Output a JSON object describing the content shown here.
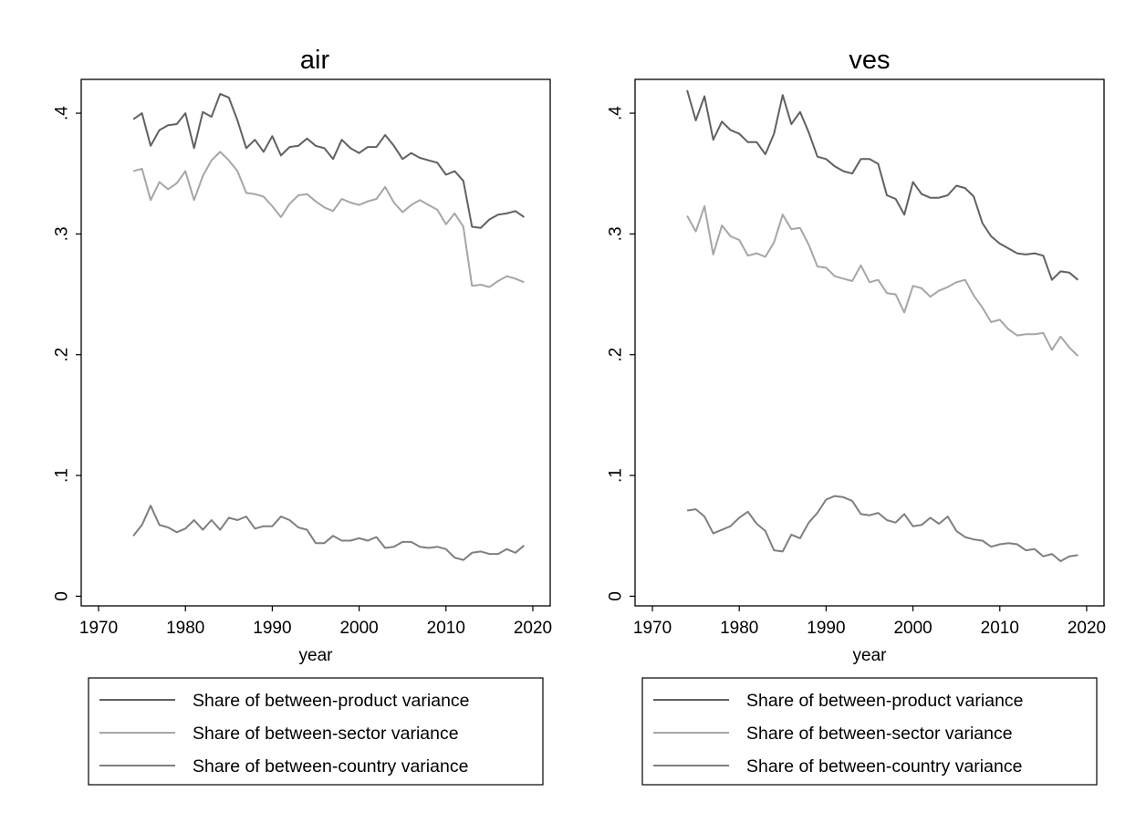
{
  "colors": {
    "between_product": "#616161",
    "between_sector": "#a6a6a6",
    "between_country": "#7f7f7f",
    "frame": "#000000"
  },
  "legend": {
    "items": [
      "Share of between-product variance",
      "Share of between-sector variance",
      "Share of between-country variance"
    ]
  },
  "chart_data": [
    {
      "type": "line",
      "title": "air",
      "xlabel": "year",
      "ylabel": "",
      "xlim": [
        1968,
        2022
      ],
      "ylim": [
        -0.008,
        0.428
      ],
      "xticks": [
        1970,
        1980,
        1990,
        2000,
        2010,
        2020
      ],
      "xtick_labels": [
        "1970",
        "1980",
        "1990",
        "2000",
        "2010",
        "2020"
      ],
      "yticks": [
        0,
        0.1,
        0.2,
        0.3,
        0.4
      ],
      "ytick_labels": [
        "0",
        ".1",
        ".2",
        ".3",
        ".4"
      ],
      "grid": false,
      "legend_position": "bottom",
      "x": [
        1974,
        1975,
        1976,
        1977,
        1978,
        1979,
        1980,
        1981,
        1982,
        1983,
        1984,
        1985,
        1986,
        1987,
        1988,
        1989,
        1990,
        1991,
        1992,
        1993,
        1994,
        1995,
        1996,
        1997,
        1998,
        1999,
        2000,
        2001,
        2002,
        2003,
        2004,
        2005,
        2006,
        2007,
        2008,
        2009,
        2010,
        2011,
        2012,
        2013,
        2014,
        2015,
        2016,
        2017,
        2018,
        2019
      ],
      "series": [
        {
          "name": "Share of between-product variance",
          "values": [
            0.395,
            0.4,
            0.373,
            0.386,
            0.39,
            0.391,
            0.4,
            0.371,
            0.401,
            0.397,
            0.416,
            0.413,
            0.394,
            0.371,
            0.378,
            0.368,
            0.381,
            0.365,
            0.372,
            0.373,
            0.379,
            0.373,
            0.371,
            0.362,
            0.378,
            0.371,
            0.367,
            0.372,
            0.372,
            0.382,
            0.373,
            0.362,
            0.367,
            0.363,
            0.361,
            0.359,
            0.349,
            0.352,
            0.344,
            0.306,
            0.305,
            0.312,
            0.316,
            0.317,
            0.319,
            0.314
          ]
        },
        {
          "name": "Share of between-sector variance",
          "values": [
            0.352,
            0.354,
            0.328,
            0.343,
            0.337,
            0.342,
            0.352,
            0.328,
            0.348,
            0.361,
            0.368,
            0.361,
            0.352,
            0.334,
            0.333,
            0.331,
            0.323,
            0.314,
            0.325,
            0.332,
            0.333,
            0.327,
            0.322,
            0.319,
            0.329,
            0.326,
            0.324,
            0.327,
            0.329,
            0.339,
            0.326,
            0.318,
            0.324,
            0.328,
            0.324,
            0.32,
            0.308,
            0.317,
            0.306,
            0.257,
            0.258,
            0.256,
            0.261,
            0.265,
            0.263,
            0.26
          ]
        },
        {
          "name": "Share of between-country variance",
          "values": [
            0.05,
            0.059,
            0.075,
            0.059,
            0.057,
            0.053,
            0.056,
            0.063,
            0.055,
            0.063,
            0.055,
            0.065,
            0.063,
            0.066,
            0.056,
            0.058,
            0.058,
            0.066,
            0.063,
            0.057,
            0.055,
            0.044,
            0.044,
            0.05,
            0.046,
            0.046,
            0.048,
            0.046,
            0.049,
            0.04,
            0.041,
            0.045,
            0.045,
            0.041,
            0.04,
            0.041,
            0.039,
            0.032,
            0.03,
            0.036,
            0.037,
            0.035,
            0.035,
            0.039,
            0.036,
            0.042
          ]
        }
      ]
    },
    {
      "type": "line",
      "title": "ves",
      "xlabel": "year",
      "ylabel": "",
      "xlim": [
        1968,
        2022
      ],
      "ylim": [
        -0.008,
        0.428
      ],
      "xticks": [
        1970,
        1980,
        1990,
        2000,
        2010,
        2020
      ],
      "xtick_labels": [
        "1970",
        "1980",
        "1990",
        "2000",
        "2010",
        "2020"
      ],
      "yticks": [
        0,
        0.1,
        0.2,
        0.3,
        0.4
      ],
      "ytick_labels": [
        "0",
        ".1",
        ".2",
        ".3",
        ".4"
      ],
      "grid": false,
      "legend_position": "bottom",
      "x": [
        1974,
        1975,
        1976,
        1977,
        1978,
        1979,
        1980,
        1981,
        1982,
        1983,
        1984,
        1985,
        1986,
        1987,
        1988,
        1989,
        1990,
        1991,
        1992,
        1993,
        1994,
        1995,
        1996,
        1997,
        1998,
        1999,
        2000,
        2001,
        2002,
        2003,
        2004,
        2005,
        2006,
        2007,
        2008,
        2009,
        2010,
        2011,
        2012,
        2013,
        2014,
        2015,
        2016,
        2017,
        2018,
        2019
      ],
      "series": [
        {
          "name": "Share of between-product variance",
          "values": [
            0.419,
            0.394,
            0.414,
            0.378,
            0.393,
            0.386,
            0.383,
            0.376,
            0.376,
            0.366,
            0.383,
            0.415,
            0.391,
            0.401,
            0.384,
            0.364,
            0.362,
            0.356,
            0.352,
            0.35,
            0.362,
            0.362,
            0.358,
            0.332,
            0.329,
            0.316,
            0.343,
            0.333,
            0.33,
            0.33,
            0.332,
            0.34,
            0.338,
            0.331,
            0.309,
            0.298,
            0.292,
            0.288,
            0.284,
            0.283,
            0.284,
            0.282,
            0.262,
            0.269,
            0.268,
            0.262
          ]
        },
        {
          "name": "Share of between-sector variance",
          "values": [
            0.315,
            0.302,
            0.323,
            0.283,
            0.307,
            0.298,
            0.295,
            0.282,
            0.284,
            0.281,
            0.293,
            0.316,
            0.304,
            0.305,
            0.291,
            0.273,
            0.272,
            0.265,
            0.263,
            0.261,
            0.274,
            0.26,
            0.262,
            0.251,
            0.25,
            0.235,
            0.257,
            0.255,
            0.248,
            0.253,
            0.256,
            0.26,
            0.262,
            0.249,
            0.239,
            0.227,
            0.229,
            0.221,
            0.216,
            0.217,
            0.217,
            0.218,
            0.204,
            0.215,
            0.206,
            0.199
          ]
        },
        {
          "name": "Share of between-country variance",
          "values": [
            0.071,
            0.072,
            0.066,
            0.052,
            0.055,
            0.058,
            0.065,
            0.07,
            0.06,
            0.054,
            0.038,
            0.037,
            0.051,
            0.048,
            0.061,
            0.069,
            0.08,
            0.083,
            0.082,
            0.079,
            0.068,
            0.067,
            0.069,
            0.063,
            0.061,
            0.068,
            0.058,
            0.059,
            0.065,
            0.06,
            0.066,
            0.054,
            0.049,
            0.047,
            0.046,
            0.041,
            0.043,
            0.044,
            0.043,
            0.038,
            0.039,
            0.033,
            0.035,
            0.029,
            0.033,
            0.034
          ]
        }
      ]
    }
  ]
}
